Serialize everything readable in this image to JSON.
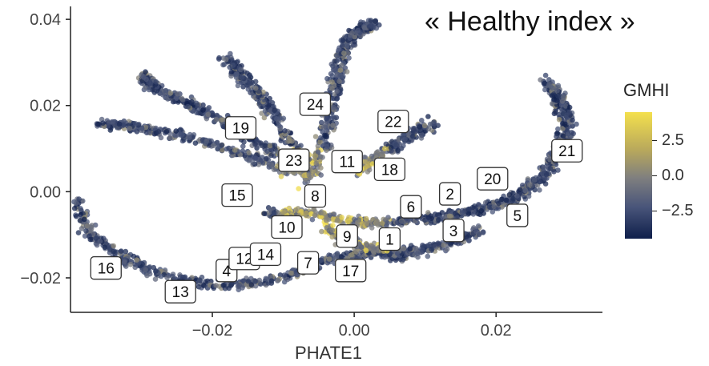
{
  "title": "« Healthy index »",
  "chart_data": {
    "type": "scatter",
    "title": "« Healthy index »",
    "xlabel": "PHATE1",
    "ylabel": "",
    "xlim": [
      -0.04,
      0.035
    ],
    "ylim": [
      -0.028,
      0.043
    ],
    "x_ticks": [
      {
        "v": -0.02,
        "label": "−0.02"
      },
      {
        "v": 0.0,
        "label": "0.00"
      },
      {
        "v": 0.02,
        "label": "0.02"
      }
    ],
    "y_ticks": [
      {
        "v": -0.02,
        "label": "−0.02"
      },
      {
        "v": 0.0,
        "label": "0.00"
      },
      {
        "v": 0.02,
        "label": "0.02"
      },
      {
        "v": 0.04,
        "label": "0.04"
      }
    ],
    "grid": false,
    "colorbar": {
      "title": "GMHI",
      "ticks": [
        {
          "v": 2.5,
          "label": "2.5"
        },
        {
          "v": 0.0,
          "label": "0.0"
        },
        {
          "v": -2.5,
          "label": "−2.5"
        }
      ],
      "range": [
        -4.5,
        4.5
      ],
      "colors": [
        "#0f1f4b",
        "#49557a",
        "#7f7f7f",
        "#b8a85c",
        "#f4e04d"
      ]
    },
    "cluster_labels": [
      {
        "label": "1",
        "x": 0.005,
        "y": -0.011
      },
      {
        "label": "2",
        "x": 0.0135,
        "y": -0.0005
      },
      {
        "label": "3",
        "x": 0.014,
        "y": -0.009
      },
      {
        "label": "4",
        "x": -0.018,
        "y": -0.0183
      },
      {
        "label": "5",
        "x": 0.023,
        "y": -0.0055
      },
      {
        "label": "6",
        "x": 0.008,
        "y": -0.0035
      },
      {
        "label": "7",
        "x": -0.0065,
        "y": -0.0165
      },
      {
        "label": "8",
        "x": -0.0055,
        "y": -0.001
      },
      {
        "label": "9",
        "x": -0.001,
        "y": -0.0103
      },
      {
        "label": "10",
        "x": -0.0095,
        "y": -0.0082
      },
      {
        "label": "11",
        "x": -0.001,
        "y": 0.007
      },
      {
        "label": "12",
        "x": -0.0155,
        "y": -0.0155
      },
      {
        "label": "13",
        "x": -0.0245,
        "y": -0.0232
      },
      {
        "label": "14",
        "x": -0.0125,
        "y": -0.0145
      },
      {
        "label": "15",
        "x": -0.0165,
        "y": -0.0008
      },
      {
        "label": "16",
        "x": -0.035,
        "y": -0.0177
      },
      {
        "label": "17",
        "x": -0.0005,
        "y": -0.0183
      },
      {
        "label": "18",
        "x": 0.005,
        "y": 0.0052
      },
      {
        "label": "19",
        "x": -0.016,
        "y": 0.0148
      },
      {
        "label": "20",
        "x": 0.0195,
        "y": 0.003
      },
      {
        "label": "21",
        "x": 0.03,
        "y": 0.0095
      },
      {
        "label": "22",
        "x": 0.0055,
        "y": 0.0163
      },
      {
        "label": "23",
        "x": -0.0085,
        "y": 0.0073
      },
      {
        "label": "24",
        "x": -0.0055,
        "y": 0.0203
      }
    ],
    "trajectories": [
      {
        "points": [
          [
            -0.04,
            -0.002
          ],
          [
            -0.037,
            -0.01
          ],
          [
            -0.032,
            -0.016
          ],
          [
            -0.026,
            -0.02
          ],
          [
            -0.018,
            -0.022
          ],
          [
            -0.01,
            -0.02
          ],
          [
            -0.004,
            -0.016
          ],
          [
            0.002,
            -0.014
          ],
          [
            0.007,
            -0.015
          ]
        ]
      },
      {
        "points": [
          [
            -0.012,
            -0.005
          ],
          [
            -0.006,
            -0.005
          ],
          [
            0.0,
            -0.007
          ],
          [
            0.006,
            -0.007
          ],
          [
            0.012,
            -0.006
          ],
          [
            0.018,
            -0.004
          ],
          [
            0.023,
            -0.001
          ],
          [
            0.027,
            0.004
          ],
          [
            0.029,
            0.01
          ],
          [
            0.03,
            0.016
          ],
          [
            0.029,
            0.021
          ],
          [
            0.027,
            0.026
          ]
        ]
      },
      {
        "points": [
          [
            -0.007,
            0.002
          ],
          [
            -0.004,
            0.012
          ],
          [
            -0.003,
            0.022
          ],
          [
            -0.002,
            0.03
          ],
          [
            -0.001,
            0.035
          ],
          [
            0.001,
            0.038
          ],
          [
            0.003,
            0.039
          ]
        ]
      },
      {
        "points": [
          [
            -0.006,
            0.004
          ],
          [
            -0.012,
            0.01
          ],
          [
            -0.018,
            0.016
          ],
          [
            -0.023,
            0.02
          ],
          [
            -0.028,
            0.024
          ],
          [
            -0.03,
            0.027
          ]
        ]
      },
      {
        "points": [
          [
            -0.008,
            0.004
          ],
          [
            -0.016,
            0.009
          ],
          [
            -0.024,
            0.013
          ],
          [
            -0.031,
            0.015
          ],
          [
            -0.036,
            0.016
          ]
        ]
      },
      {
        "points": [
          [
            -0.006,
            0.006
          ],
          [
            -0.01,
            0.014
          ],
          [
            -0.013,
            0.022
          ],
          [
            -0.016,
            0.027
          ],
          [
            -0.018,
            0.031
          ]
        ]
      },
      {
        "points": [
          [
            0.0,
            0.004
          ],
          [
            0.004,
            0.009
          ],
          [
            0.008,
            0.013
          ],
          [
            0.011,
            0.016
          ]
        ]
      },
      {
        "points": [
          [
            -0.004,
            -0.008
          ],
          [
            0.0,
            -0.012
          ],
          [
            0.004,
            -0.014
          ],
          [
            0.008,
            -0.014
          ],
          [
            0.013,
            -0.012
          ],
          [
            0.018,
            -0.009
          ]
        ]
      }
    ]
  }
}
